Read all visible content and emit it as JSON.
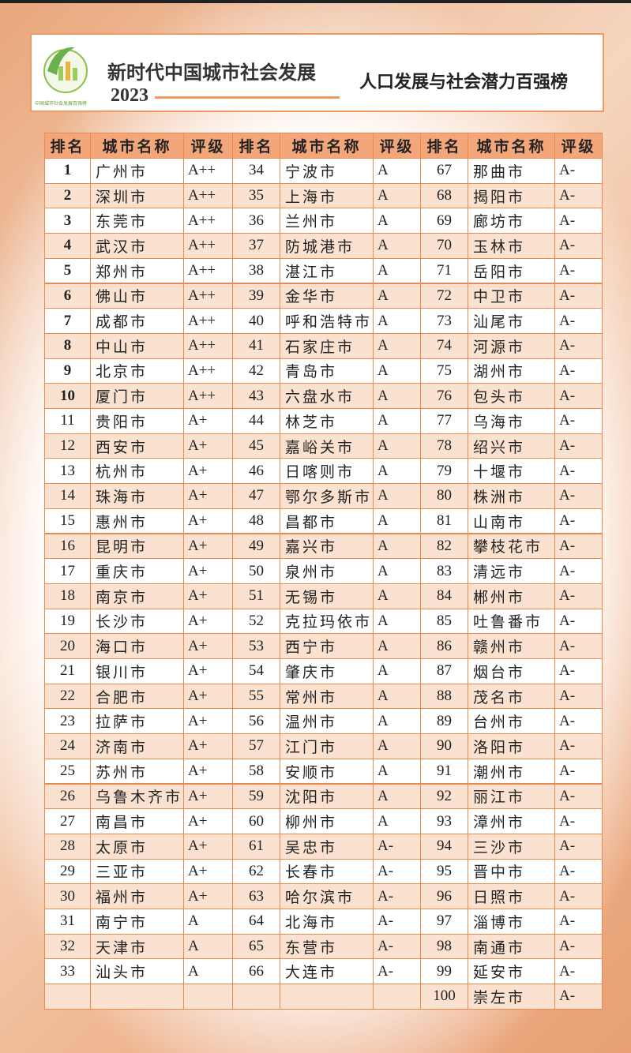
{
  "header": {
    "logo_text": "中国城市社会发展百强榜",
    "title": "新时代中国城市社会发展",
    "year": "2023",
    "subtitle": "人口发展与社会潜力百强榜"
  },
  "table": {
    "columns": [
      "排名",
      "城市名称",
      "评级"
    ],
    "groups": [
      {
        "rows": [
          [
            1,
            "广州市",
            "A++"
          ],
          [
            2,
            "深圳市",
            "A++"
          ],
          [
            3,
            "东莞市",
            "A++"
          ],
          [
            4,
            "武汉市",
            "A++"
          ],
          [
            5,
            "郑州市",
            "A++"
          ],
          [
            6,
            "佛山市",
            "A++"
          ],
          [
            7,
            "成都市",
            "A++"
          ],
          [
            8,
            "中山市",
            "A++"
          ],
          [
            9,
            "北京市",
            "A++"
          ],
          [
            10,
            "厦门市",
            "A++"
          ],
          [
            11,
            "贵阳市",
            "A+"
          ],
          [
            12,
            "西安市",
            "A+"
          ],
          [
            13,
            "杭州市",
            "A+"
          ],
          [
            14,
            "珠海市",
            "A+"
          ],
          [
            15,
            "惠州市",
            "A+"
          ],
          [
            16,
            "昆明市",
            "A+"
          ],
          [
            17,
            "重庆市",
            "A+"
          ],
          [
            18,
            "南京市",
            "A+"
          ],
          [
            19,
            "长沙市",
            "A+"
          ],
          [
            20,
            "海口市",
            "A+"
          ],
          [
            21,
            "银川市",
            "A+"
          ],
          [
            22,
            "合肥市",
            "A+"
          ],
          [
            23,
            "拉萨市",
            "A+"
          ],
          [
            24,
            "济南市",
            "A+"
          ],
          [
            25,
            "苏州市",
            "A+"
          ],
          [
            26,
            "乌鲁木齐市",
            "A+"
          ],
          [
            27,
            "南昌市",
            "A+"
          ],
          [
            28,
            "太原市",
            "A+"
          ],
          [
            29,
            "三亚市",
            "A+"
          ],
          [
            30,
            "福州市",
            "A+"
          ],
          [
            31,
            "南宁市",
            "A"
          ],
          [
            32,
            "天津市",
            "A"
          ],
          [
            33,
            "汕头市",
            "A"
          ]
        ]
      },
      {
        "rows": [
          [
            34,
            "宁波市",
            "A"
          ],
          [
            35,
            "上海市",
            "A"
          ],
          [
            36,
            "兰州市",
            "A"
          ],
          [
            37,
            "防城港市",
            "A"
          ],
          [
            38,
            "湛江市",
            "A"
          ],
          [
            39,
            "金华市",
            "A"
          ],
          [
            40,
            "呼和浩特市",
            "A"
          ],
          [
            41,
            "石家庄市",
            "A"
          ],
          [
            42,
            "青岛市",
            "A"
          ],
          [
            43,
            "六盘水市",
            "A"
          ],
          [
            44,
            "林芝市",
            "A"
          ],
          [
            45,
            "嘉峪关市",
            "A"
          ],
          [
            46,
            "日喀则市",
            "A"
          ],
          [
            47,
            "鄂尔多斯市",
            "A"
          ],
          [
            48,
            "昌都市",
            "A"
          ],
          [
            49,
            "嘉兴市",
            "A"
          ],
          [
            50,
            "泉州市",
            "A"
          ],
          [
            51,
            "无锡市",
            "A"
          ],
          [
            52,
            "克拉玛依市",
            "A"
          ],
          [
            53,
            "西宁市",
            "A"
          ],
          [
            54,
            "肇庆市",
            "A"
          ],
          [
            55,
            "常州市",
            "A"
          ],
          [
            56,
            "温州市",
            "A"
          ],
          [
            57,
            "江门市",
            "A"
          ],
          [
            58,
            "安顺市",
            "A"
          ],
          [
            59,
            "沈阳市",
            "A"
          ],
          [
            60,
            "柳州市",
            "A"
          ],
          [
            61,
            "吴忠市",
            "A-"
          ],
          [
            62,
            "长春市",
            "A-"
          ],
          [
            63,
            "哈尔滨市",
            "A-"
          ],
          [
            64,
            "北海市",
            "A-"
          ],
          [
            65,
            "东营市",
            "A-"
          ],
          [
            66,
            "大连市",
            "A-"
          ]
        ]
      },
      {
        "rows": [
          [
            67,
            "那曲市",
            "A-"
          ],
          [
            68,
            "揭阳市",
            "A-"
          ],
          [
            69,
            "廊坊市",
            "A-"
          ],
          [
            70,
            "玉林市",
            "A-"
          ],
          [
            71,
            "岳阳市",
            "A-"
          ],
          [
            72,
            "中卫市",
            "A-"
          ],
          [
            73,
            "汕尾市",
            "A-"
          ],
          [
            74,
            "河源市",
            "A-"
          ],
          [
            75,
            "湖州市",
            "A-"
          ],
          [
            76,
            "包头市",
            "A-"
          ],
          [
            77,
            "乌海市",
            "A-"
          ],
          [
            78,
            "绍兴市",
            "A-"
          ],
          [
            79,
            "十堰市",
            "A-"
          ],
          [
            80,
            "株洲市",
            "A-"
          ],
          [
            81,
            "山南市",
            "A-"
          ],
          [
            82,
            "攀枝花市",
            "A-"
          ],
          [
            83,
            "清远市",
            "A-"
          ],
          [
            84,
            "郴州市",
            "A-"
          ],
          [
            85,
            "吐鲁番市",
            "A-"
          ],
          [
            86,
            "赣州市",
            "A-"
          ],
          [
            87,
            "烟台市",
            "A-"
          ],
          [
            88,
            "茂名市",
            "A-"
          ],
          [
            89,
            "台州市",
            "A-"
          ],
          [
            90,
            "洛阳市",
            "A-"
          ],
          [
            91,
            "潮州市",
            "A-"
          ],
          [
            92,
            "丽江市",
            "A-"
          ],
          [
            93,
            "漳州市",
            "A-"
          ],
          [
            94,
            "三沙市",
            "A-"
          ],
          [
            95,
            "晋中市",
            "A-"
          ],
          [
            96,
            "日照市",
            "A-"
          ],
          [
            97,
            "淄博市",
            "A-"
          ],
          [
            98,
            "南通市",
            "A-"
          ],
          [
            99,
            "延安市",
            "A-"
          ],
          [
            100,
            "崇左市",
            "A-"
          ]
        ]
      }
    ]
  }
}
